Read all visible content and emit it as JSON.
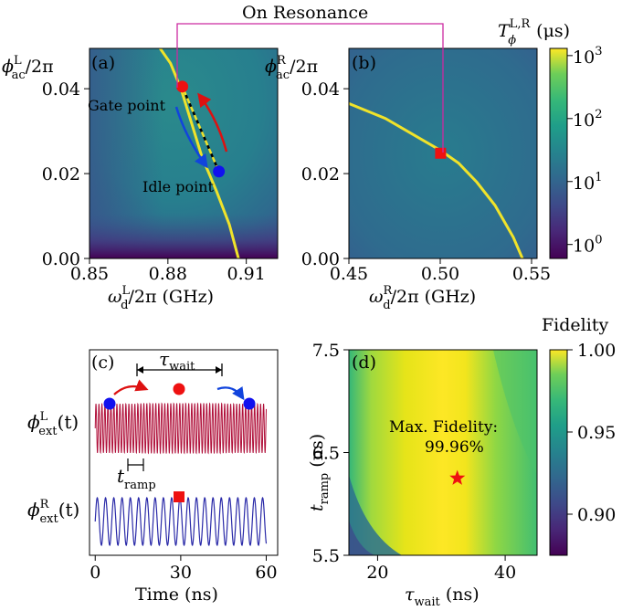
{
  "header": {
    "on_resonance": "On Resonance",
    "fidelity_label": "Fidelity"
  },
  "colors": {
    "hot": "#f0e32a",
    "gate_point": "#ee1111",
    "idle_point": "#1111ee",
    "resonance_box": "#cc2aa0",
    "arrow_red": "#dd1111",
    "arrow_blue": "#1144dd",
    "waveform_L": "#b0103a",
    "waveform_R": "#2a2aa8"
  },
  "chart_data": [
    {
      "id": "a",
      "type": "heatmap",
      "panel_label": "(a)",
      "x_tick_labels": [
        "0.85",
        "0.88",
        "0.91"
      ],
      "y_tick_labels": [
        "0.00",
        "0.02",
        "0.04"
      ],
      "xlim": [
        0.85,
        0.922
      ],
      "ylim": [
        0.0,
        0.0495
      ],
      "resonance_curve": {
        "x": [
          0.907,
          0.9035,
          0.8985,
          0.893,
          0.889,
          0.885,
          0.881,
          0.877
        ],
        "y": [
          0.0,
          0.008,
          0.016,
          0.024,
          0.032,
          0.04,
          0.046,
          0.0495
        ]
      },
      "gate_point": {
        "label": "Gate point",
        "x": 0.8855,
        "y": 0.0405
      },
      "idle_point": {
        "label": "Idle point",
        "x": 0.8995,
        "y": 0.0205
      },
      "zscale": "log"
    },
    {
      "id": "b",
      "type": "heatmap",
      "panel_label": "(b)",
      "x_tick_labels": [
        "0.45",
        "0.50",
        "0.55"
      ],
      "y_tick_labels": [
        "0.00",
        "0.02",
        "0.04"
      ],
      "xlim": [
        0.45,
        0.553
      ],
      "ylim": [
        0.0,
        0.0495
      ],
      "resonance_curve": {
        "x": [
          0.45,
          0.47,
          0.49,
          0.5,
          0.51,
          0.52,
          0.53,
          0.54,
          0.545
        ],
        "y": [
          0.0365,
          0.033,
          0.028,
          0.0255,
          0.0225,
          0.018,
          0.0125,
          0.005,
          0.0
        ]
      },
      "resonance_point": {
        "x": 0.5002,
        "y": 0.0248
      },
      "zscale": "log"
    },
    {
      "id": "colorbar_T",
      "type": "heatmap",
      "colormap": "viridis",
      "scale": "log",
      "range": [
        0.6,
        1300
      ],
      "tick_labels": [
        "10",
        "10",
        "10",
        "10"
      ],
      "tick_exponents": [
        "0",
        "1",
        "2",
        "3"
      ],
      "tick_values": [
        1,
        10,
        100,
        1000
      ]
    },
    {
      "id": "c",
      "type": "line",
      "panel_label": "(c)",
      "x_tick_labels": [
        "0",
        "30",
        "60"
      ],
      "xlim": [
        -2,
        64
      ],
      "x_tick_values": [
        0,
        30,
        60
      ],
      "annotations": {
        "t_ramp_value": [
          14,
          17
        ],
        "tau_wait": [
          16,
          46
        ]
      },
      "series": [
        {
          "name_base": "ϕ",
          "name_sup": "L",
          "name_sub": "ext",
          "name_arg": "(t)",
          "t_range": [
            0,
            60
          ],
          "ramp_up": [
            14,
            17
          ],
          "ramp_down": [
            44,
            47
          ],
          "wide_amp": 1.0,
          "narrow_amp": 0.6
        },
        {
          "name_base": "ϕ",
          "name_sup": "R",
          "name_sub": "ext",
          "name_arg": "(t)",
          "t_range": [
            0,
            60
          ],
          "amp": 1.0
        }
      ]
    },
    {
      "id": "d",
      "type": "heatmap",
      "panel_label": "(d)",
      "x_tick_labels": [
        "20",
        "40"
      ],
      "x_tick_values": [
        20,
        40
      ],
      "xlim": [
        15.5,
        45
      ],
      "y_tick_labels": [
        "5.5",
        "6.5",
        "7.5"
      ],
      "y_tick_values": [
        5.5,
        6.5,
        7.5
      ],
      "ylim": [
        5.5,
        7.5
      ],
      "max_point": {
        "x": 32.5,
        "y": 6.25
      },
      "max_label_line1": "Max. Fidelity:",
      "max_label_line2": "99.96%"
    },
    {
      "id": "colorbar_F",
      "type": "heatmap",
      "colormap": "viridis",
      "range": [
        0.875,
        1.0
      ],
      "tick_labels": [
        "0.90",
        "0.95",
        "1.00"
      ],
      "tick_values": [
        0.9,
        0.95,
        1.0
      ]
    }
  ],
  "axis_text": {
    "a_ylabel": {
      "base": "ϕ",
      "sup": "L",
      "sub": "ac",
      "tail": "/2π"
    },
    "a_xlabel": {
      "base": "ω",
      "sup": "L",
      "sub": "d",
      "tail": "/2π (GHz)"
    },
    "b_ylabel": {
      "base": "ϕ",
      "sup": "R",
      "sub": "ac",
      "tail": "/2π"
    },
    "b_xlabel": {
      "base": "ω",
      "sup": "R",
      "sub": "d",
      "tail": "/2π (GHz)"
    },
    "colorbar_title": {
      "base": "T",
      "sup": "L,R",
      "sub": "ϕ",
      "tail": " (μs)"
    },
    "c_xlabel": "Time (ns)",
    "c_tau": {
      "base": "τ",
      "sub": "wait"
    },
    "c_tramp": {
      "base": "t",
      "sub": "ramp"
    },
    "d_xlabel": {
      "base": "τ",
      "sub": "wait",
      "tail": " (ns)"
    },
    "d_ylabel": {
      "base": "t",
      "sub": "ramp",
      "tail": " (ns)"
    }
  }
}
